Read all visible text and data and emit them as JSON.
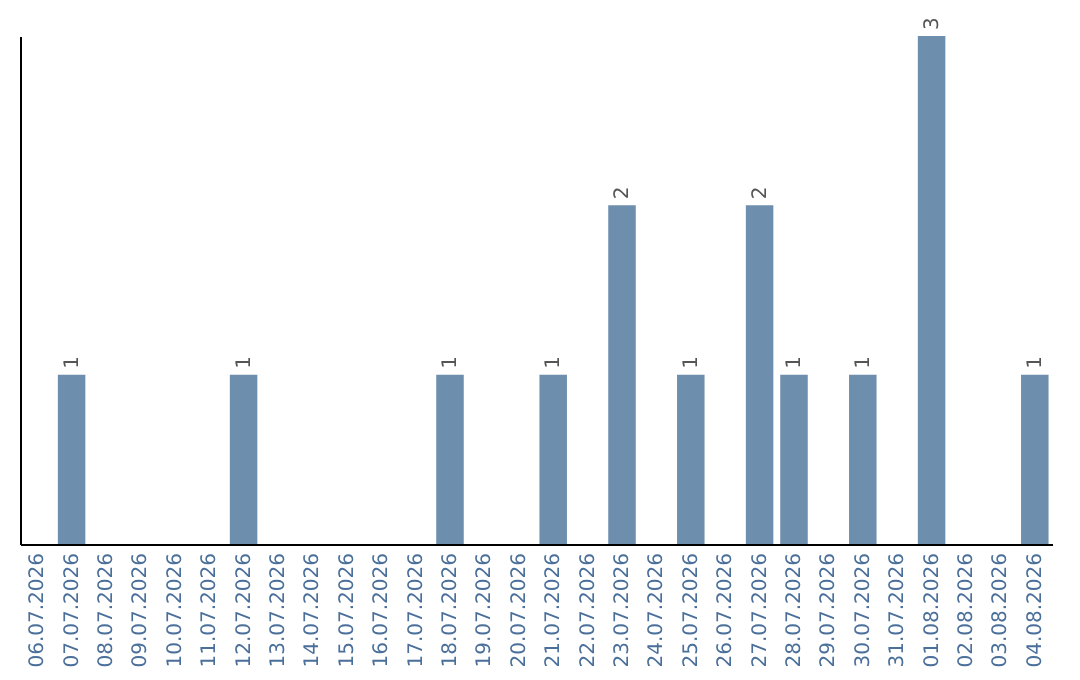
{
  "chart_data": {
    "type": "bar",
    "categories": [
      "06.07.2026",
      "07.07.2026",
      "08.07.2026",
      "09.07.2026",
      "10.07.2026",
      "11.07.2026",
      "12.07.2026",
      "13.07.2026",
      "14.07.2026",
      "15.07.2026",
      "16.07.2026",
      "17.07.2026",
      "18.07.2026",
      "19.07.2026",
      "20.07.2026",
      "21.07.2026",
      "22.07.2026",
      "23.07.2026",
      "24.07.2026",
      "25.07.2026",
      "26.07.2026",
      "27.07.2026",
      "28.07.2026",
      "29.07.2026",
      "30.07.2026",
      "31.07.2026",
      "01.08.2026",
      "02.08.2026",
      "03.08.2026",
      "04.08.2026"
    ],
    "values": [
      0,
      1,
      0,
      0,
      0,
      0,
      1,
      0,
      0,
      0,
      0,
      0,
      1,
      0,
      0,
      1,
      0,
      2,
      0,
      1,
      0,
      2,
      1,
      0,
      1,
      0,
      3,
      0,
      0,
      1
    ],
    "value_labels": [
      null,
      "1",
      null,
      null,
      null,
      null,
      "1",
      null,
      null,
      null,
      null,
      null,
      "1",
      null,
      null,
      "1",
      null,
      "2",
      null,
      "1",
      null,
      "2",
      "1",
      null,
      "1",
      null,
      "3",
      null,
      null,
      "1"
    ],
    "color": "#6d8fad",
    "ylim": [
      0,
      3
    ],
    "tick_labels": "x",
    "grid": false
  }
}
